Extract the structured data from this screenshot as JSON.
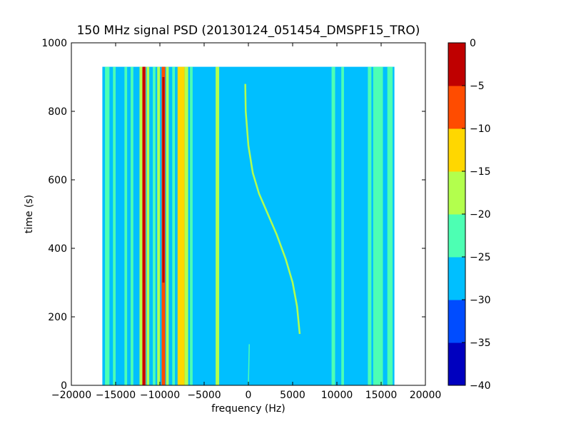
{
  "chart_data": {
    "type": "heatmap",
    "title": "150 MHz signal PSD (20130124_051454_DMSPF15_TRO)",
    "xlabel": "frequency (Hz)",
    "ylabel": "time (s)",
    "xlim": [
      -20000,
      20000
    ],
    "ylim": [
      0,
      1000
    ],
    "xticks": [
      -20000,
      -15000,
      -10000,
      -5000,
      0,
      5000,
      10000,
      15000,
      20000
    ],
    "xtick_labels": [
      "−20000",
      "−15000",
      "−10000",
      "−5000",
      "0",
      "5000",
      "10000",
      "15000",
      "20000"
    ],
    "yticks": [
      0,
      200,
      400,
      600,
      800,
      1000
    ],
    "ytick_labels": [
      "0",
      "200",
      "400",
      "600",
      "800",
      "1000"
    ],
    "data_extent": {
      "freq_min": -16500,
      "freq_max": 16500,
      "time_min": 0,
      "time_max": 930
    },
    "background_level": -27.5,
    "colorbar": {
      "levels": [
        -40,
        -35,
        -30,
        -25,
        -20,
        -15,
        -10,
        -5,
        0
      ],
      "tick_labels": [
        "−40",
        "−35",
        "−30",
        "−25",
        "−20",
        "−15",
        "−10",
        "−5",
        "0"
      ],
      "colors": [
        "#0000bf",
        "#004cff",
        "#00bfff",
        "#4dffb3",
        "#b3ff4d",
        "#ffd700",
        "#ff4c00",
        "#bf0000"
      ]
    },
    "bands": [
      {
        "f_min": -16200,
        "f_max": -15700,
        "level": -22.5
      },
      {
        "f_min": -15300,
        "f_max": -15000,
        "level": -22.5
      },
      {
        "f_min": -14000,
        "f_max": -13700,
        "level": -22.5
      },
      {
        "f_min": -13300,
        "f_max": -13000,
        "level": -22.5
      },
      {
        "f_min": -12300,
        "f_max": -12000,
        "level": -17.5
      },
      {
        "f_min": -12000,
        "f_max": -11600,
        "level": -7.5
      },
      {
        "f_min": -11500,
        "f_max": -11200,
        "level": -17.5
      },
      {
        "f_min": -10800,
        "f_max": -10500,
        "level": -22.5
      },
      {
        "f_min": -10300,
        "f_max": -10000,
        "level": -17.5
      },
      {
        "f_min": -9800,
        "f_max": -9400,
        "level": -7.5
      },
      {
        "f_min": -9300,
        "f_max": -9000,
        "level": -17.5
      },
      {
        "f_min": -8600,
        "f_max": -8300,
        "level": -22.5
      },
      {
        "f_min": -8000,
        "f_max": -7200,
        "level": -12.5
      },
      {
        "f_min": -7200,
        "f_max": -6800,
        "level": -17.5
      },
      {
        "f_min": -6600,
        "f_max": -6300,
        "level": -22.5
      },
      {
        "f_min": -3700,
        "f_max": -3300,
        "level": -17.5
      },
      {
        "f_min": 9400,
        "f_max": 9800,
        "level": -22.5
      },
      {
        "f_min": 10500,
        "f_max": 10800,
        "level": -22.5
      },
      {
        "f_min": 13500,
        "f_max": 13900,
        "level": -22.5
      },
      {
        "f_min": 14100,
        "f_max": 15200,
        "level": -22.5
      },
      {
        "f_min": 15700,
        "f_max": 16300,
        "level": -22.5
      }
    ],
    "sweep_trace": {
      "level": -17.5,
      "points": [
        {
          "freq": -350,
          "time": 880
        },
        {
          "freq": -300,
          "time": 800
        },
        {
          "freq": 0,
          "time": 700
        },
        {
          "freq": 500,
          "time": 620
        },
        {
          "freq": 1200,
          "time": 560
        },
        {
          "freq": 2200,
          "time": 500
        },
        {
          "freq": 3200,
          "time": 440
        },
        {
          "freq": 4200,
          "time": 370
        },
        {
          "freq": 5000,
          "time": 300
        },
        {
          "freq": 5500,
          "time": 230
        },
        {
          "freq": 5800,
          "time": 150
        }
      ]
    },
    "faint_trace": {
      "level": -22.5,
      "points": [
        {
          "freq": 0,
          "time": 0
        },
        {
          "freq": 100,
          "time": 120
        }
      ]
    },
    "hot_segments": [
      {
        "f_min": -12000,
        "f_max": -11600,
        "t_min": 0,
        "t_max": 930,
        "level": -2.5
      },
      {
        "f_min": -9800,
        "f_max": -9400,
        "t_min": 300,
        "t_max": 900,
        "level": -2.5
      }
    ]
  }
}
